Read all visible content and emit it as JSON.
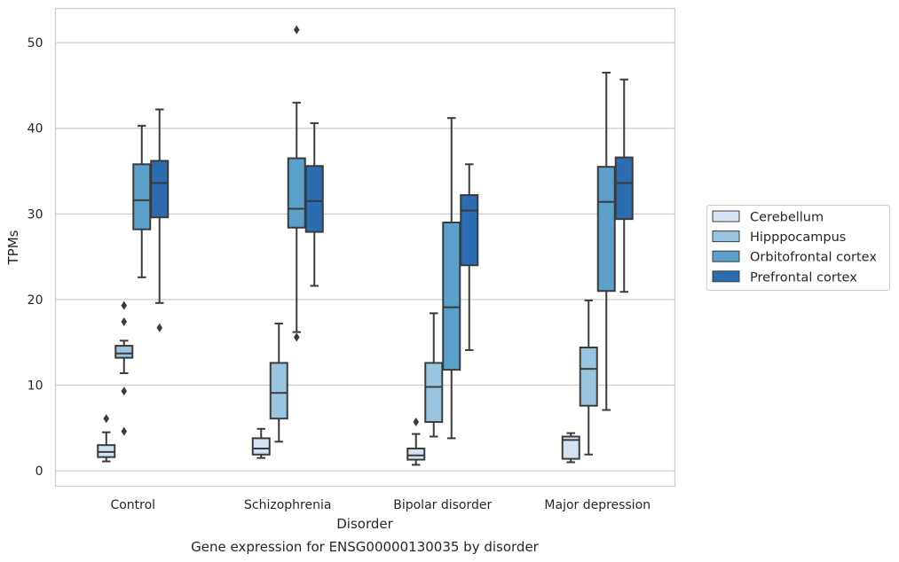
{
  "chart_data": {
    "type": "box",
    "title": "",
    "caption": "Gene expression for ENSG00000130035 by disorder",
    "xlabel": "Disorder",
    "ylabel": "TPMs",
    "ylim": [
      -1.8,
      54
    ],
    "yticks": [
      0,
      10,
      20,
      30,
      40,
      50
    ],
    "grid": "horizontal",
    "legend_placement": "right",
    "categories": [
      "Control",
      "Schizophrenia",
      "Bipolar disorder",
      "Major depression"
    ],
    "series": [
      {
        "name": "Cerebellum",
        "color": "#d3e3f3",
        "boxes": [
          {
            "whislo": 1.1,
            "q1": 1.6,
            "med": 2.2,
            "q3": 3.0,
            "whishi": 4.5,
            "fliers": [
              6.1
            ]
          },
          {
            "whislo": 1.5,
            "q1": 1.9,
            "med": 2.6,
            "q3": 3.8,
            "whishi": 4.9,
            "fliers": []
          },
          {
            "whislo": 0.7,
            "q1": 1.3,
            "med": 1.8,
            "q3": 2.6,
            "whishi": 4.3,
            "fliers": [
              5.7
            ]
          },
          {
            "whislo": 1.0,
            "q1": 1.4,
            "med": 3.6,
            "q3": 4.0,
            "whishi": 4.4,
            "fliers": []
          }
        ]
      },
      {
        "name": "Hipppocampus",
        "color": "#9ac5e0",
        "boxes": [
          {
            "whislo": 11.4,
            "q1": 13.2,
            "med": 13.7,
            "q3": 14.6,
            "whishi": 15.2,
            "fliers": [
              9.3,
              4.6,
              17.4,
              19.3
            ]
          },
          {
            "whislo": 3.4,
            "q1": 6.1,
            "med": 9.1,
            "q3": 12.6,
            "whishi": 17.2,
            "fliers": []
          },
          {
            "whislo": 4.0,
            "q1": 5.7,
            "med": 9.8,
            "q3": 12.6,
            "whishi": 18.4,
            "fliers": []
          },
          {
            "whislo": 1.9,
            "q1": 7.6,
            "med": 11.9,
            "q3": 14.4,
            "whishi": 19.9,
            "fliers": []
          }
        ]
      },
      {
        "name": "Orbitofrontal cortex",
        "color": "#5ba0cb",
        "boxes": [
          {
            "whislo": 22.6,
            "q1": 28.2,
            "med": 31.6,
            "q3": 35.8,
            "whishi": 40.3,
            "fliers": []
          },
          {
            "whislo": 16.2,
            "q1": 28.4,
            "med": 30.6,
            "q3": 36.5,
            "whishi": 43.0,
            "fliers": [
              15.6,
              51.5
            ]
          },
          {
            "whislo": 3.8,
            "q1": 11.8,
            "med": 19.1,
            "q3": 29.0,
            "whishi": 41.2,
            "fliers": []
          },
          {
            "whislo": 7.1,
            "q1": 21.0,
            "med": 31.4,
            "q3": 35.5,
            "whishi": 46.5,
            "fliers": []
          }
        ]
      },
      {
        "name": "Prefrontal cortex",
        "color": "#2b6db0",
        "boxes": [
          {
            "whislo": 19.6,
            "q1": 29.6,
            "med": 33.6,
            "q3": 36.2,
            "whishi": 42.2,
            "fliers": [
              16.7
            ]
          },
          {
            "whislo": 21.6,
            "q1": 27.9,
            "med": 31.5,
            "q3": 35.6,
            "whishi": 40.6,
            "fliers": []
          },
          {
            "whislo": 14.1,
            "q1": 24.0,
            "med": 30.4,
            "q3": 32.2,
            "whishi": 35.8,
            "fliers": []
          },
          {
            "whislo": 20.9,
            "q1": 29.4,
            "med": 33.6,
            "q3": 36.6,
            "whishi": 45.7,
            "fliers": []
          }
        ]
      }
    ]
  }
}
